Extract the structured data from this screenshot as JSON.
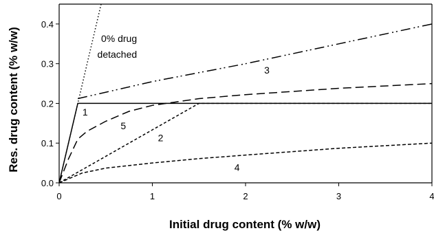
{
  "chart_data": {
    "type": "line",
    "xlabel": "Initial drug content (% w/w)",
    "ylabel": "Res. drug content (% w/w)",
    "xlim": [
      0,
      4
    ],
    "ylim": [
      0,
      0.45
    ],
    "x_ticks": [
      "0",
      "1",
      "2",
      "3",
      "4"
    ],
    "y_ticks": [
      "0.0",
      "0.1",
      "0.2",
      "0.3",
      "0.4"
    ],
    "grid": false,
    "legend": "none",
    "annotations": [
      {
        "text": "0% drug",
        "x": 0.45,
        "y": 0.355
      },
      {
        "text": "detached",
        "x": 0.41,
        "y": 0.315
      },
      {
        "text": "1",
        "x": 0.25,
        "y": 0.17
      },
      {
        "text": "2",
        "x": 1.06,
        "y": 0.105
      },
      {
        "text": "3",
        "x": 2.2,
        "y": 0.275
      },
      {
        "text": "4",
        "x": 1.88,
        "y": 0.03
      },
      {
        "text": "5",
        "x": 0.66,
        "y": 0.135
      }
    ],
    "series": [
      {
        "label_ref": "0% drug detached",
        "dash": "1.5,3",
        "x": [
          0,
          0.45
        ],
        "y": [
          0,
          0.45
        ]
      },
      {
        "label_ref": "1",
        "dash": "",
        "x": [
          0,
          0.2,
          4.0
        ],
        "y": [
          0,
          0.2,
          0.2
        ]
      },
      {
        "label_ref": "2",
        "dash": "4,3",
        "x": [
          0,
          1.5,
          4.0
        ],
        "y": [
          0,
          0.2,
          0.2
        ]
      },
      {
        "label_ref": "3",
        "dash": "14,5,2,4,2,5",
        "x": [
          0.2,
          1.0,
          2.0,
          3.0,
          4.0
        ],
        "y": [
          0.212,
          0.255,
          0.3,
          0.35,
          0.4
        ]
      },
      {
        "label_ref": "4",
        "dash": "5,3",
        "x": [
          0,
          0.25,
          0.5,
          1.0,
          1.5,
          2.0,
          3.0,
          4.0
        ],
        "y": [
          0,
          0.025,
          0.037,
          0.05,
          0.061,
          0.07,
          0.087,
          0.1
        ]
      },
      {
        "label_ref": "5",
        "dash": "12,6",
        "x": [
          0,
          0.1,
          0.2,
          0.3,
          0.5,
          0.75,
          1.0,
          1.5,
          2.0,
          3.0,
          4.0
        ],
        "y": [
          0,
          0.06,
          0.11,
          0.13,
          0.155,
          0.18,
          0.195,
          0.212,
          0.222,
          0.238,
          0.25
        ]
      }
    ]
  }
}
